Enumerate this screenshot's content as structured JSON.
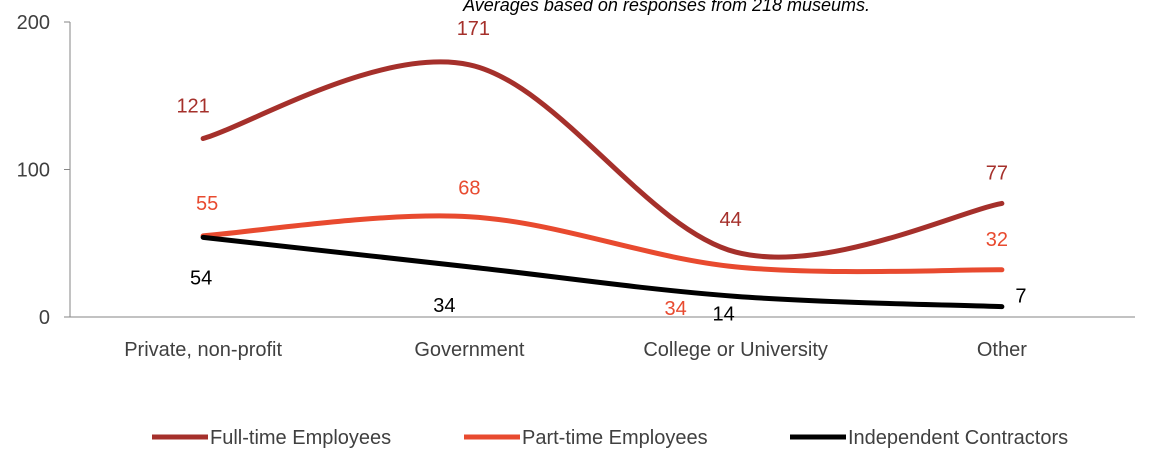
{
  "chart_data": {
    "type": "line",
    "subtitle": "Averages based on responses from 218 museums.",
    "categories": [
      "Private, non-profit",
      "Government",
      "College or University",
      "Other"
    ],
    "ylim": [
      0,
      200
    ],
    "yticks": [
      "0",
      "100",
      "200"
    ],
    "grid": false,
    "legend_position": "bottom",
    "series": [
      {
        "name": "Full-time Employees",
        "values": [
          121,
          171,
          44,
          77
        ],
        "labels": [
          "121",
          "171",
          "44",
          "77"
        ],
        "color": "#a5302b",
        "label_color": "#a5302b"
      },
      {
        "name": "Part-time Employees",
        "values": [
          55,
          68,
          34,
          32
        ],
        "labels": [
          "55",
          "68",
          "34",
          "32"
        ],
        "color": "#e84a2f",
        "label_color": "#e84a2f"
      },
      {
        "name": "Independent Contractors",
        "values": [
          54,
          34,
          14,
          7
        ],
        "labels": [
          "54",
          "34",
          "14",
          "7"
        ],
        "color": "#000000",
        "label_color": "#000000"
      }
    ]
  }
}
